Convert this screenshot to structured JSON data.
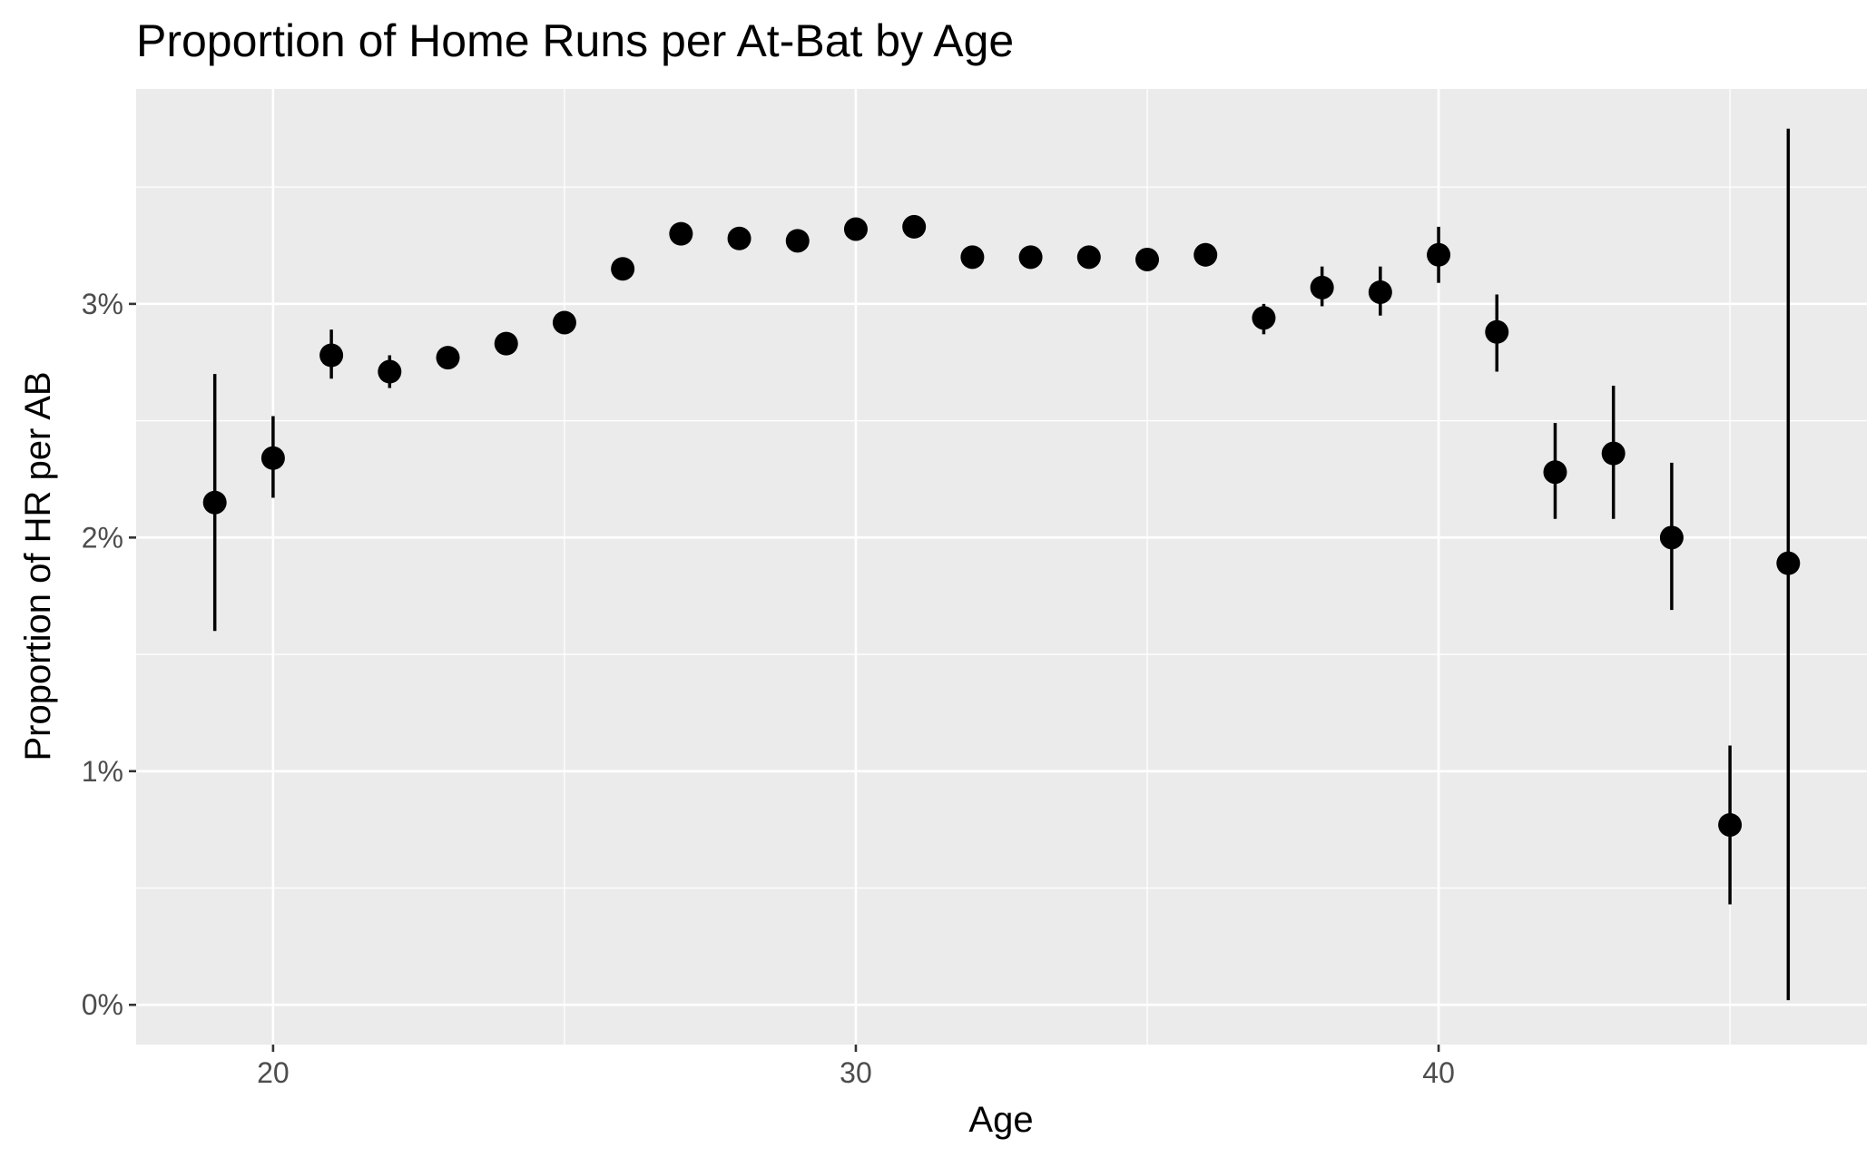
{
  "chart_data": {
    "type": "scatter",
    "title": "Proportion of Home Runs per At-Bat by Age",
    "xlabel": "Age",
    "ylabel": "Proportion of HR per AB",
    "xlim": [
      17.65,
      47.35
    ],
    "ylim": [
      -0.0017,
      0.0392
    ],
    "x_ticks": [
      20,
      30,
      40
    ],
    "x_tick_labels": [
      "20",
      "30",
      "40"
    ],
    "y_ticks": [
      0,
      0.01,
      0.02,
      0.03
    ],
    "y_tick_labels": [
      "0%",
      "1%",
      "2%",
      "3%"
    ],
    "grid": true,
    "colors": {
      "panel": "#ebebeb",
      "grid": "#ffffff",
      "point": "#000000",
      "errorbar": "#000000"
    },
    "points": [
      {
        "x": 19,
        "y": 0.0215,
        "lo": 0.016,
        "hi": 0.027
      },
      {
        "x": 20,
        "y": 0.0234,
        "lo": 0.0217,
        "hi": 0.0252
      },
      {
        "x": 21,
        "y": 0.0278,
        "lo": 0.0268,
        "hi": 0.0289
      },
      {
        "x": 22,
        "y": 0.0271,
        "lo": 0.0264,
        "hi": 0.0278
      },
      {
        "x": 23,
        "y": 0.0277,
        "lo": 0.0277,
        "hi": 0.0277
      },
      {
        "x": 24,
        "y": 0.0283,
        "lo": 0.0283,
        "hi": 0.0283
      },
      {
        "x": 25,
        "y": 0.0292,
        "lo": 0.0292,
        "hi": 0.0292
      },
      {
        "x": 26,
        "y": 0.0315,
        "lo": 0.0315,
        "hi": 0.0315
      },
      {
        "x": 27,
        "y": 0.033,
        "lo": 0.033,
        "hi": 0.033
      },
      {
        "x": 28,
        "y": 0.0328,
        "lo": 0.0328,
        "hi": 0.0328
      },
      {
        "x": 29,
        "y": 0.0327,
        "lo": 0.0327,
        "hi": 0.0327
      },
      {
        "x": 30,
        "y": 0.0332,
        "lo": 0.0332,
        "hi": 0.0332
      },
      {
        "x": 31,
        "y": 0.0333,
        "lo": 0.0333,
        "hi": 0.0333
      },
      {
        "x": 32,
        "y": 0.032,
        "lo": 0.032,
        "hi": 0.032
      },
      {
        "x": 33,
        "y": 0.032,
        "lo": 0.032,
        "hi": 0.032
      },
      {
        "x": 34,
        "y": 0.032,
        "lo": 0.032,
        "hi": 0.032
      },
      {
        "x": 35,
        "y": 0.0319,
        "lo": 0.0319,
        "hi": 0.0319
      },
      {
        "x": 36,
        "y": 0.0321,
        "lo": 0.0316,
        "hi": 0.0326
      },
      {
        "x": 37,
        "y": 0.0294,
        "lo": 0.0287,
        "hi": 0.03
      },
      {
        "x": 38,
        "y": 0.0307,
        "lo": 0.0299,
        "hi": 0.0316
      },
      {
        "x": 39,
        "y": 0.0305,
        "lo": 0.0295,
        "hi": 0.0316
      },
      {
        "x": 40,
        "y": 0.0321,
        "lo": 0.0309,
        "hi": 0.0333
      },
      {
        "x": 41,
        "y": 0.0288,
        "lo": 0.0271,
        "hi": 0.0304
      },
      {
        "x": 42,
        "y": 0.0228,
        "lo": 0.0208,
        "hi": 0.0249
      },
      {
        "x": 43,
        "y": 0.0236,
        "lo": 0.0208,
        "hi": 0.0265
      },
      {
        "x": 44,
        "y": 0.02,
        "lo": 0.0169,
        "hi": 0.0232
      },
      {
        "x": 45,
        "y": 0.0077,
        "lo": 0.0043,
        "hi": 0.0111
      },
      {
        "x": 46,
        "y": 0.0189,
        "lo": 0.0002,
        "hi": 0.0375
      }
    ]
  }
}
